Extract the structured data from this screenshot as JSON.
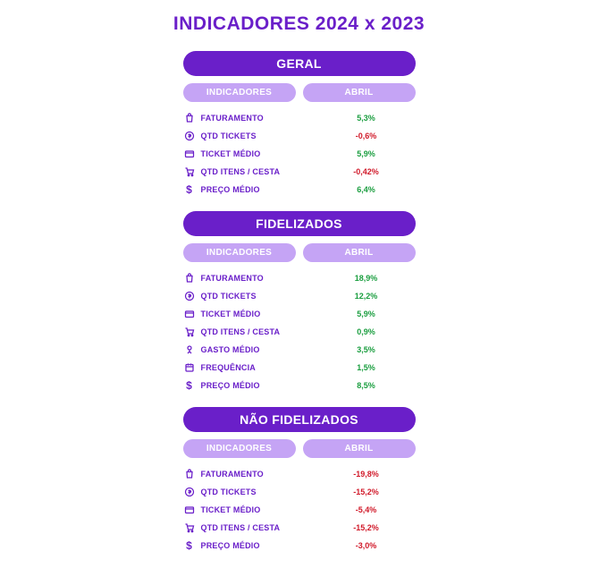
{
  "page": {
    "title": "INDICADORES 2024 x 2023",
    "title_color": "#6a1fc9",
    "background": "#ffffff"
  },
  "colors": {
    "primary": "#6a1fc9",
    "header_light": "#c5a4f5",
    "positive": "#1a9e3f",
    "negative": "#d11a2a"
  },
  "column_headers": {
    "indicadores": "INDICADORES",
    "abril": "ABRIL"
  },
  "icons": {
    "faturamento": "bag-icon",
    "qtd_tickets": "coin-icon",
    "ticket_medio": "wallet-icon",
    "qtd_itens": "cart-icon",
    "gasto_medio": "receipt-icon",
    "frequencia": "calendar-icon",
    "preco_medio": "dollar-icon"
  },
  "sections": [
    {
      "title": "GERAL",
      "rows": [
        {
          "icon": "bag-icon",
          "label": "FATURAMENTO",
          "value": "5,3%",
          "positive": true
        },
        {
          "icon": "coin-icon",
          "label": "QTD TICKETS",
          "value": "-0,6%",
          "positive": false
        },
        {
          "icon": "wallet-icon",
          "label": "TICKET MÉDIO",
          "value": "5,9%",
          "positive": true
        },
        {
          "icon": "cart-icon",
          "label": "QTD ITENS / CESTA",
          "value": "-0,42%",
          "positive": false
        },
        {
          "icon": "dollar-icon",
          "label": "PREÇO MÉDIO",
          "value": "6,4%",
          "positive": true
        }
      ]
    },
    {
      "title": "FIDELIZADOS",
      "rows": [
        {
          "icon": "bag-icon",
          "label": "FATURAMENTO",
          "value": "18,9%",
          "positive": true
        },
        {
          "icon": "coin-icon",
          "label": "QTD TICKETS",
          "value": "12,2%",
          "positive": true
        },
        {
          "icon": "wallet-icon",
          "label": "TICKET MÉDIO",
          "value": "5,9%",
          "positive": true
        },
        {
          "icon": "cart-icon",
          "label": "QTD ITENS / CESTA",
          "value": "0,9%",
          "positive": true
        },
        {
          "icon": "receipt-icon",
          "label": "GASTO MÉDIO",
          "value": "3,5%",
          "positive": true
        },
        {
          "icon": "calendar-icon",
          "label": "FREQUÊNCIA",
          "value": "1,5%",
          "positive": true
        },
        {
          "icon": "dollar-icon",
          "label": "PREÇO MÉDIO",
          "value": "8,5%",
          "positive": true
        }
      ]
    },
    {
      "title": "NÃO FIDELIZADOS",
      "rows": [
        {
          "icon": "bag-icon",
          "label": "FATURAMENTO",
          "value": "-19,8%",
          "positive": false
        },
        {
          "icon": "coin-icon",
          "label": "QTD TICKETS",
          "value": "-15,2%",
          "positive": false
        },
        {
          "icon": "wallet-icon",
          "label": "TICKET MÉDIO",
          "value": "-5,4%",
          "positive": false
        },
        {
          "icon": "cart-icon",
          "label": "QTD ITENS / CESTA",
          "value": "-15,2%",
          "positive": false
        },
        {
          "icon": "dollar-icon",
          "label": "PREÇO MÉDIO",
          "value": "-3,0%",
          "positive": false
        }
      ]
    }
  ]
}
